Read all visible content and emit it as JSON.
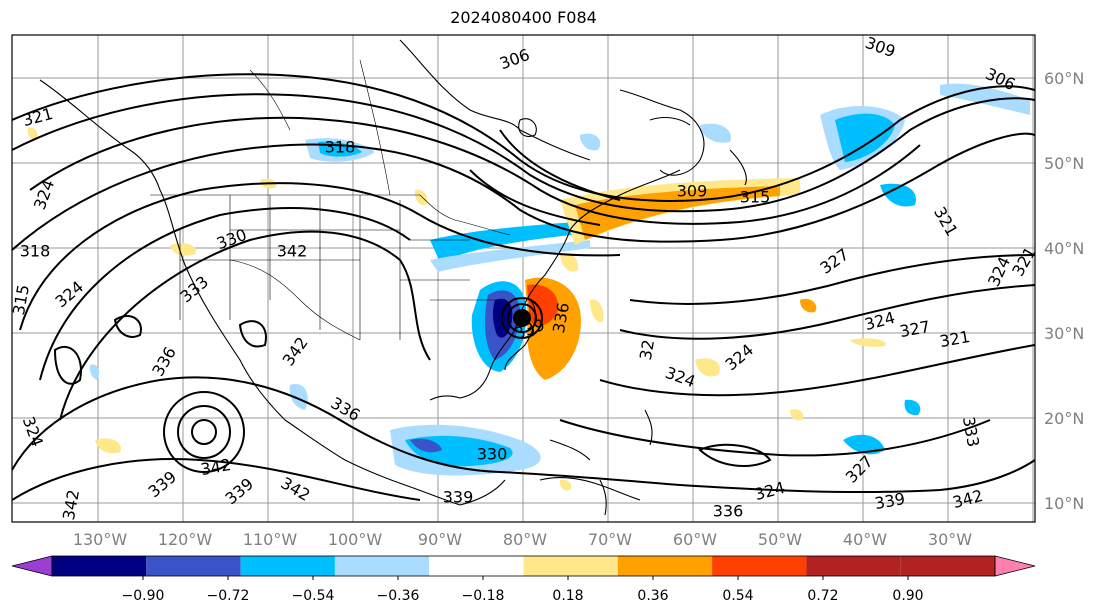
{
  "title": "2024080400 F084",
  "lon_labels": [
    "130°W",
    "120°W",
    "110°W",
    "100°W",
    "90°W",
    "80°W",
    "70°W",
    "60°W",
    "50°W",
    "40°W",
    "30°W"
  ],
  "lat_labels": [
    "60°N",
    "50°N",
    "40°N",
    "30°N",
    "20°N",
    "10°N"
  ],
  "colorbar": {
    "colors": [
      "#9b3fd1",
      "#000080",
      "#3a53c8",
      "#00bfff",
      "#aadcff",
      "#ffffff",
      "#ffe88a",
      "#ffa100",
      "#ff4000",
      "#b22222",
      "#ff7faf"
    ],
    "tick_labels": [
      "−0.90",
      "−0.72",
      "−0.54",
      "−0.36",
      "−0.18",
      "0.18",
      "0.36",
      "0.54",
      "0.72",
      "0.90"
    ]
  },
  "contour_labels": [
    {
      "text": "306"
    },
    {
      "text": "309"
    },
    {
      "text": "306"
    },
    {
      "text": "321"
    },
    {
      "text": "318"
    },
    {
      "text": "324"
    },
    {
      "text": "318"
    },
    {
      "text": "315"
    },
    {
      "text": "324"
    },
    {
      "text": "330"
    },
    {
      "text": "342"
    },
    {
      "text": "333"
    },
    {
      "text": "336"
    },
    {
      "text": "342"
    },
    {
      "text": "309"
    },
    {
      "text": "315"
    },
    {
      "text": "321"
    },
    {
      "text": "327"
    },
    {
      "text": "324"
    },
    {
      "text": "321"
    },
    {
      "text": "324"
    },
    {
      "text": "327"
    },
    {
      "text": "321"
    },
    {
      "text": "336"
    },
    {
      "text": "339"
    },
    {
      "text": "330"
    },
    {
      "text": "339"
    },
    {
      "text": "342"
    },
    {
      "text": "339"
    },
    {
      "text": "342"
    },
    {
      "text": "339"
    },
    {
      "text": "324"
    },
    {
      "text": "342"
    },
    {
      "text": "336"
    },
    {
      "text": "324"
    },
    {
      "text": "327"
    },
    {
      "text": "339"
    },
    {
      "text": "342"
    },
    {
      "text": "333"
    },
    {
      "text": "32"
    },
    {
      "text": "324"
    },
    {
      "text": "336"
    },
    {
      "text": "324"
    }
  ]
}
